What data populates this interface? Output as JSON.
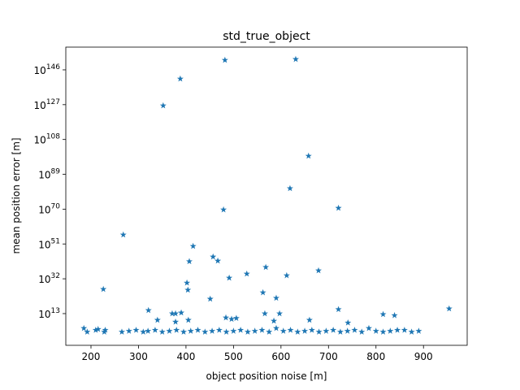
{
  "chart_data": {
    "type": "scatter",
    "title": "std_true_object",
    "x_label": "object position noise [m]",
    "y_label": "mean position error [m]",
    "color": "#1f77b4",
    "marker": "star",
    "y_log": true,
    "grid": false,
    "xlim": [
      147,
      992
    ],
    "ylim": [
      5e-05,
      2.5e+158
    ],
    "xticks": [
      200,
      300,
      400,
      500,
      600,
      700,
      800,
      900
    ],
    "yticks": [
      {
        "value": 10000000000000.0,
        "label": "10^13"
      },
      {
        "value": 1e+32,
        "label": "10^32"
      },
      {
        "value": 1e+51,
        "label": "10^51"
      },
      {
        "value": 1e+70,
        "label": "10^70"
      },
      {
        "value": 1e+89,
        "label": "10^89"
      },
      {
        "value": 1e+108,
        "label": "10^108"
      },
      {
        "value": 1e+127,
        "label": "10^127"
      },
      {
        "value": 1e+146,
        "label": "10^146"
      }
    ],
    "x": [
      388,
      482,
      631,
      352,
      658,
      619,
      479,
      721,
      268,
      415,
      407,
      457,
      467,
      568,
      528,
      679,
      612,
      491,
      402,
      404,
      226,
      562,
      590,
      451,
      321,
      721,
      954,
      371,
      378,
      390,
      566,
      597,
      815,
      839,
      660,
      484,
      506,
      496,
      340,
      378,
      405,
      741,
      585,
      185,
      192,
      210,
      215,
      230,
      228,
      265,
      280,
      295,
      310,
      320,
      335,
      350,
      365,
      380,
      395,
      410,
      425,
      440,
      455,
      470,
      485,
      500,
      515,
      530,
      545,
      560,
      575,
      590,
      605,
      620,
      635,
      650,
      665,
      680,
      695,
      710,
      725,
      740,
      755,
      770,
      785,
      800,
      815,
      830,
      845,
      860,
      875,
      890
    ],
    "values": [
      1.3e+141,
      2e+151,
      6e+151,
      3e+126,
      1e+99,
      2e+81,
      5e+69,
      4e+70,
      1e+56,
      6e+49,
      3e+41,
      1e+44,
      6e+41,
      2e+38,
      5e+34,
      3e+36,
      6e+33,
      3e+32,
      6e+29,
      8e+25,
      2e+26,
      3e+24,
      3e+21,
      1e+21,
      600000000000000.0,
      2000000000000000.0,
      5000000000000000.0,
      10000000000000.0,
      10000000000000.0,
      30000000000000.0,
      10000000000000.0,
      10000000000000.0,
      4000000000000.0,
      1000000000000.0,
      3000000000.0,
      60000000000.0,
      30000000000.0,
      10000000000.0,
      3000000000.0,
      300000000.0,
      3000000000.0,
      100000000.0,
      1000000000.0,
      100000.0,
      1000.0,
      10000.0,
      30000.0,
      10000.0,
      1000.0,
      1000.0,
      3000.0,
      10000.0,
      1000.0,
      3000.0,
      10000.0,
      1000.0,
      3000.0,
      10000.0,
      1000.0,
      3000.0,
      10000.0,
      1000.0,
      3000.0,
      10000.0,
      1000.0,
      3000.0,
      10000.0,
      1000.0,
      3000.0,
      10000.0,
      1000.0,
      100000.0,
      3000.0,
      10000.0,
      1000.0,
      3000.0,
      10000.0,
      1000.0,
      3000.0,
      10000.0,
      1000.0,
      3000.0,
      10000.0,
      1000.0,
      100000.0,
      3000.0,
      1000.0,
      3000.0,
      10000.0,
      10000.0,
      1000.0,
      3000.0
    ]
  }
}
